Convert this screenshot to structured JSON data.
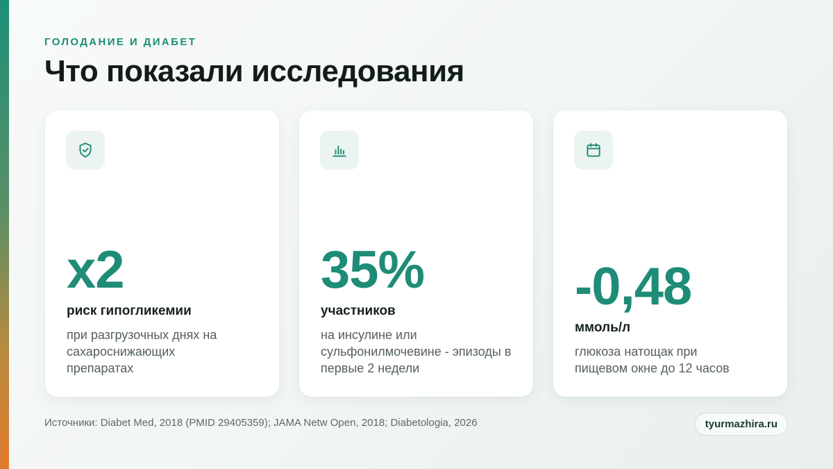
{
  "colors": {
    "accent": "#1e8c76",
    "title": "#121c1a",
    "icon_bg": "#ebf4f1",
    "accent_bar_top": "#1c8f78",
    "accent_bar_bottom": "#e27a2d"
  },
  "header": {
    "eyebrow": "ГОЛОДАНИЕ И ДИАБЕТ",
    "title": "Что показали исследования"
  },
  "cards": [
    {
      "icon": "shield-check-icon",
      "value": "x2",
      "label": "риск гипогликемии",
      "description": "при разгрузочных днях на сахароснижающих препаратах"
    },
    {
      "icon": "bar-chart-icon",
      "value": "35%",
      "label": "участников",
      "description": "на инсулине или сульфонилмочевине - эпизоды в первые 2 недели"
    },
    {
      "icon": "calendar-icon",
      "value": "-0,48",
      "label": "ммоль/л",
      "description": "глюкоза натощак при пищевом окне до 12 часов"
    }
  ],
  "footer": {
    "sources": "Источники: Diabet Med, 2018 (PMID 29405359); JAMA Netw Open, 2018; Diabetologia, 2026",
    "site": "tyurmazhira.ru"
  }
}
